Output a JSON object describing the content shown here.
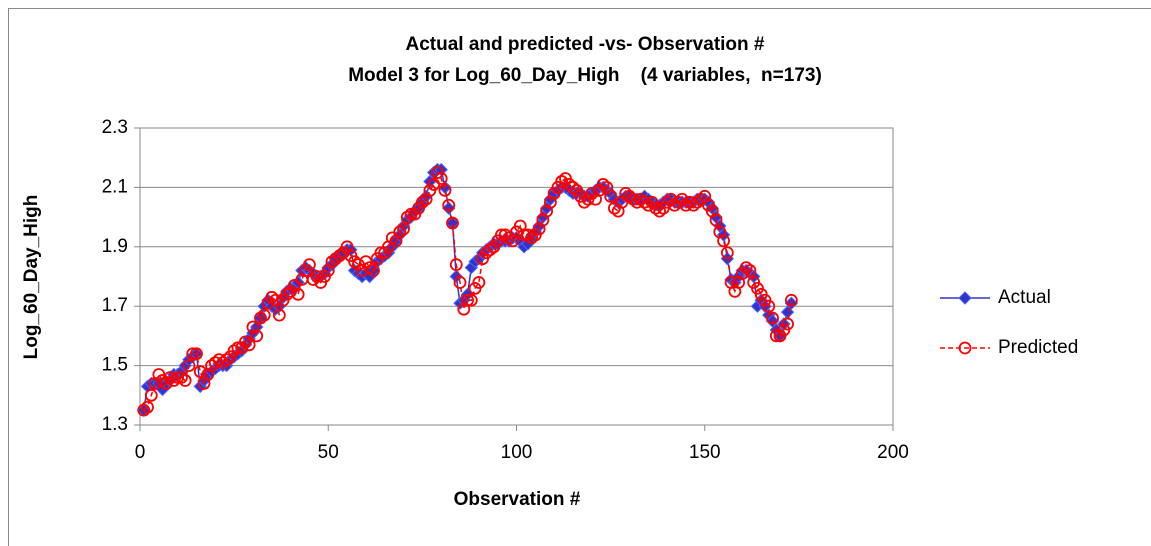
{
  "chart_data": {
    "type": "line",
    "title": "Actual and predicted -vs- Observation #",
    "subtitle": "Model 3 for Log_60_Day_High    (4 variables,  n=173)",
    "x_label": "Observation #",
    "y_label": "Log_60_Day_High",
    "xlim": [
      0,
      200
    ],
    "xticks": [
      0,
      50,
      100,
      150,
      200
    ],
    "ylim": [
      1.3,
      2.3
    ],
    "yticks": [
      1.3,
      1.5,
      1.7,
      1.9,
      2.1,
      2.3
    ],
    "grid": true,
    "legend": "right",
    "x": [
      1,
      2,
      3,
      4,
      5,
      6,
      7,
      8,
      9,
      10,
      11,
      12,
      13,
      14,
      15,
      16,
      17,
      18,
      19,
      20,
      21,
      22,
      23,
      24,
      25,
      26,
      27,
      28,
      29,
      30,
      31,
      32,
      33,
      34,
      35,
      36,
      37,
      38,
      39,
      40,
      41,
      42,
      43,
      44,
      45,
      46,
      47,
      48,
      49,
      50,
      51,
      52,
      53,
      54,
      55,
      56,
      57,
      58,
      59,
      60,
      61,
      62,
      63,
      64,
      65,
      66,
      67,
      68,
      69,
      70,
      71,
      72,
      73,
      74,
      75,
      76,
      77,
      78,
      79,
      80,
      81,
      82,
      83,
      84,
      85,
      86,
      87,
      88,
      89,
      90,
      91,
      92,
      93,
      94,
      95,
      96,
      97,
      98,
      99,
      100,
      101,
      102,
      103,
      104,
      105,
      106,
      107,
      108,
      109,
      110,
      111,
      112,
      113,
      114,
      115,
      116,
      117,
      118,
      119,
      120,
      121,
      122,
      123,
      124,
      125,
      126,
      127,
      128,
      129,
      130,
      131,
      132,
      133,
      134,
      135,
      136,
      137,
      138,
      139,
      140,
      141,
      142,
      143,
      144,
      145,
      146,
      147,
      148,
      149,
      150,
      151,
      152,
      153,
      154,
      155,
      156,
      157,
      158,
      159,
      160,
      161,
      162,
      163,
      164,
      165,
      166,
      167,
      168,
      169,
      170,
      171,
      172,
      173
    ],
    "series": [
      {
        "name": "Actual",
        "color": "#3333cc",
        "marker": "diamond",
        "dash": false,
        "values": [
          1.35,
          1.43,
          1.44,
          1.44,
          1.44,
          1.42,
          1.44,
          1.45,
          1.47,
          1.47,
          1.48,
          1.5,
          1.52,
          1.53,
          1.54,
          1.43,
          1.45,
          1.47,
          1.48,
          1.49,
          1.5,
          1.5,
          1.5,
          1.52,
          1.53,
          1.54,
          1.55,
          1.57,
          1.59,
          1.61,
          1.63,
          1.66,
          1.7,
          1.72,
          1.7,
          1.69,
          1.7,
          1.73,
          1.75,
          1.76,
          1.76,
          1.78,
          1.82,
          1.83,
          1.82,
          1.81,
          1.8,
          1.8,
          1.81,
          1.83,
          1.84,
          1.86,
          1.87,
          1.88,
          1.89,
          1.89,
          1.82,
          1.81,
          1.8,
          1.81,
          1.8,
          1.82,
          1.85,
          1.86,
          1.87,
          1.88,
          1.9,
          1.92,
          1.94,
          1.97,
          1.99,
          2.0,
          2.02,
          2.03,
          2.05,
          2.07,
          2.12,
          2.15,
          2.16,
          2.16,
          2.1,
          2.03,
          1.98,
          1.8,
          1.71,
          1.72,
          1.74,
          1.83,
          1.85,
          1.86,
          1.88,
          1.89,
          1.9,
          1.91,
          1.91,
          1.92,
          1.92,
          1.92,
          1.93,
          1.93,
          1.92,
          1.9,
          1.91,
          1.93,
          1.95,
          1.97,
          2.0,
          2.03,
          2.06,
          2.08,
          2.09,
          2.1,
          2.1,
          2.09,
          2.08,
          2.08,
          2.08,
          2.07,
          2.07,
          2.08,
          2.09,
          2.1,
          2.1,
          2.09,
          2.08,
          2.06,
          2.05,
          2.06,
          2.07,
          2.07,
          2.06,
          2.06,
          2.06,
          2.07,
          2.06,
          2.05,
          2.04,
          2.04,
          2.05,
          2.06,
          2.06,
          2.05,
          2.05,
          2.05,
          2.05,
          2.05,
          2.05,
          2.06,
          2.06,
          2.06,
          2.05,
          2.03,
          2.0,
          1.97,
          1.94,
          1.86,
          1.79,
          1.78,
          1.8,
          1.82,
          1.82,
          1.81,
          1.8,
          1.7,
          1.72,
          1.7,
          1.67,
          1.65,
          1.62,
          1.6,
          1.64,
          1.68,
          1.71
        ]
      },
      {
        "name": "Predicted",
        "color": "#ff0000",
        "marker": "circle",
        "dash": true,
        "values": [
          1.35,
          1.36,
          1.4,
          1.44,
          1.47,
          1.45,
          1.44,
          1.46,
          1.45,
          1.46,
          1.46,
          1.45,
          1.5,
          1.54,
          1.54,
          1.48,
          1.44,
          1.47,
          1.5,
          1.51,
          1.52,
          1.51,
          1.52,
          1.53,
          1.55,
          1.56,
          1.56,
          1.58,
          1.57,
          1.63,
          1.6,
          1.66,
          1.67,
          1.71,
          1.73,
          1.72,
          1.67,
          1.72,
          1.74,
          1.75,
          1.77,
          1.74,
          1.79,
          1.82,
          1.84,
          1.79,
          1.8,
          1.78,
          1.8,
          1.82,
          1.85,
          1.86,
          1.87,
          1.88,
          1.9,
          1.87,
          1.85,
          1.84,
          1.82,
          1.85,
          1.83,
          1.82,
          1.86,
          1.88,
          1.88,
          1.9,
          1.93,
          1.92,
          1.95,
          1.96,
          2.0,
          2.01,
          2.01,
          2.03,
          2.05,
          2.06,
          2.09,
          2.11,
          2.15,
          2.13,
          2.09,
          2.04,
          1.98,
          1.84,
          1.78,
          1.69,
          1.72,
          1.72,
          1.76,
          1.78,
          1.86,
          1.88,
          1.89,
          1.9,
          1.92,
          1.94,
          1.94,
          1.93,
          1.92,
          1.95,
          1.97,
          1.94,
          1.94,
          1.93,
          1.94,
          1.96,
          1.99,
          2.02,
          2.05,
          2.08,
          2.1,
          2.12,
          2.13,
          2.11,
          2.1,
          2.09,
          2.07,
          2.05,
          2.06,
          2.08,
          2.06,
          2.09,
          2.11,
          2.1,
          2.07,
          2.03,
          2.02,
          2.05,
          2.08,
          2.07,
          2.06,
          2.05,
          2.06,
          2.05,
          2.04,
          2.05,
          2.03,
          2.02,
          2.03,
          2.05,
          2.06,
          2.04,
          2.05,
          2.06,
          2.04,
          2.05,
          2.04,
          2.05,
          2.06,
          2.07,
          2.04,
          2.02,
          1.99,
          1.95,
          1.92,
          1.88,
          1.78,
          1.75,
          1.78,
          1.81,
          1.83,
          1.82,
          1.78,
          1.76,
          1.74,
          1.72,
          1.7,
          1.66,
          1.6,
          1.6,
          1.62,
          1.64,
          1.72
        ]
      }
    ]
  }
}
